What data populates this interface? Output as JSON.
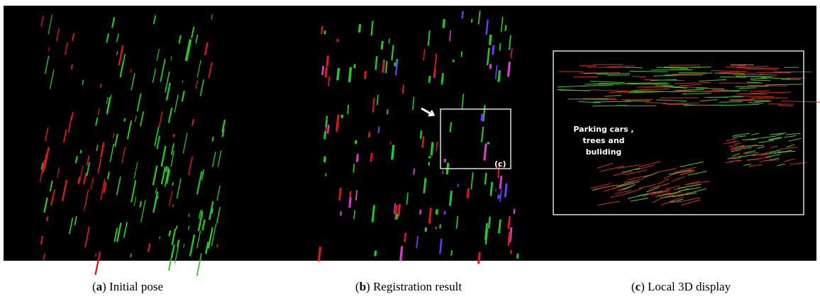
{
  "figure": {
    "panels": [
      {
        "open": "(",
        "letter": "a",
        "rest": ") Initial pose"
      },
      {
        "open": "(",
        "letter": "b",
        "rest": ") Registration result"
      },
      {
        "open": "(",
        "letter": "c",
        "rest": ") Local 3D display"
      }
    ],
    "zoom_label": "(c)",
    "annotation_lines": [
      "Parking cars ,",
      "trees and",
      "buliding"
    ]
  }
}
